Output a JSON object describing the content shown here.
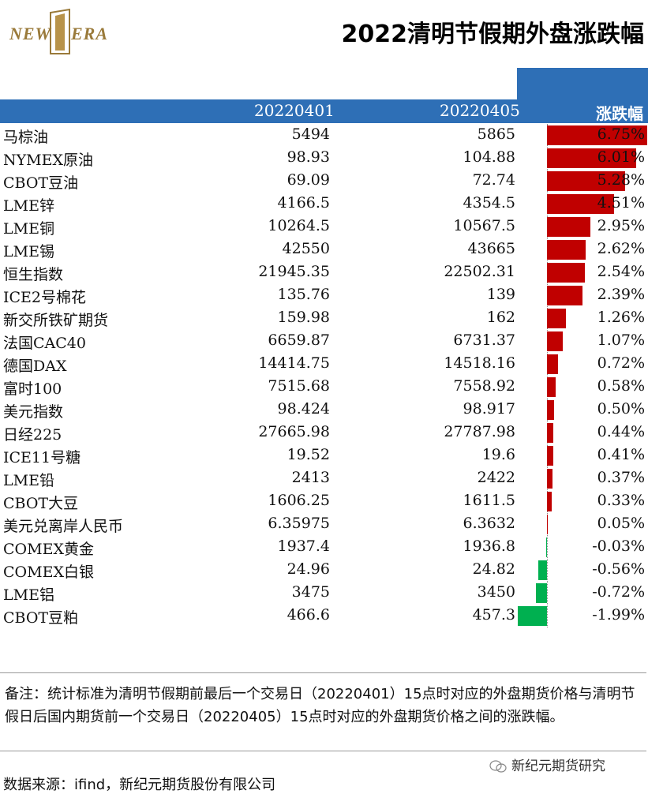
{
  "logo": {
    "left_text": "NEW",
    "right_text": "ERA"
  },
  "title": "2022清明节假期外盘涨跌幅",
  "header": {
    "col_a": "20220401",
    "col_b": "20220405",
    "col_pct": "涨跌幅"
  },
  "rows": [
    {
      "name": "马棕油",
      "a": "5494",
      "b": "5865",
      "pct": "6.75%",
      "value": 6.75
    },
    {
      "name": "NYMEX原油",
      "a": "98.93",
      "b": "104.88",
      "pct": "6.01%",
      "value": 6.01
    },
    {
      "name": "CBOT豆油",
      "a": "69.09",
      "b": "72.74",
      "pct": "5.28%",
      "value": 5.28
    },
    {
      "name": "LME锌",
      "a": "4166.5",
      "b": "4354.5",
      "pct": "4.51%",
      "value": 4.51
    },
    {
      "name": "LME铜",
      "a": "10264.5",
      "b": "10567.5",
      "pct": "2.95%",
      "value": 2.95
    },
    {
      "name": "LME锡",
      "a": "42550",
      "b": "43665",
      "pct": "2.62%",
      "value": 2.62
    },
    {
      "name": "恒生指数",
      "a": "21945.35",
      "b": "22502.31",
      "pct": "2.54%",
      "value": 2.54
    },
    {
      "name": "ICE2号棉花",
      "a": "135.76",
      "b": "139",
      "pct": "2.39%",
      "value": 2.39
    },
    {
      "name": "新交所铁矿期货",
      "a": "159.98",
      "b": "162",
      "pct": "1.26%",
      "value": 1.26
    },
    {
      "name": "法国CAC40",
      "a": "6659.87",
      "b": "6731.37",
      "pct": "1.07%",
      "value": 1.07
    },
    {
      "name": "德国DAX",
      "a": "14414.75",
      "b": "14518.16",
      "pct": "0.72%",
      "value": 0.72
    },
    {
      "name": "富时100",
      "a": "7515.68",
      "b": "7558.92",
      "pct": "0.58%",
      "value": 0.58
    },
    {
      "name": "美元指数",
      "a": "98.424",
      "b": "98.917",
      "pct": "0.50%",
      "value": 0.5
    },
    {
      "name": "日经225",
      "a": "27665.98",
      "b": "27787.98",
      "pct": "0.44%",
      "value": 0.44
    },
    {
      "name": "ICE11号糖",
      "a": "19.52",
      "b": "19.6",
      "pct": "0.41%",
      "value": 0.41
    },
    {
      "name": "LME铅",
      "a": "2413",
      "b": "2422",
      "pct": "0.37%",
      "value": 0.37
    },
    {
      "name": "CBOT大豆",
      "a": "1606.25",
      "b": "1611.5",
      "pct": "0.33%",
      "value": 0.33
    },
    {
      "name": "美元兑离岸人民币",
      "a": "6.35975",
      "b": "6.3632",
      "pct": "0.05%",
      "value": 0.05
    },
    {
      "name": "COMEX黄金",
      "a": "1937.4",
      "b": "1936.8",
      "pct": "-0.03%",
      "value": -0.03
    },
    {
      "name": "COMEX白银",
      "a": "24.96",
      "b": "24.82",
      "pct": "-0.56%",
      "value": -0.56
    },
    {
      "name": "LME铝",
      "a": "3475",
      "b": "3450",
      "pct": "-0.72%",
      "value": -0.72
    },
    {
      "name": "CBOT豆粕",
      "a": "466.6",
      "b": "457.3",
      "pct": "-1.99%",
      "value": -1.99
    }
  ],
  "colors": {
    "header_bg": "#2e6fb6",
    "up": "#c00000",
    "down": "#00b050"
  },
  "note": "备注：统计标准为清明节假期前最后一个交易日（20220401）15点时对应的外盘期货价格与清明节假日后国内期货前一个交易日（20220405）15点时对应的外盘期货价格之间的涨跌幅。",
  "source": "数据来源：ifind，新纪元期货股份有限公司",
  "wechat_label": "新纪元期货研究"
}
